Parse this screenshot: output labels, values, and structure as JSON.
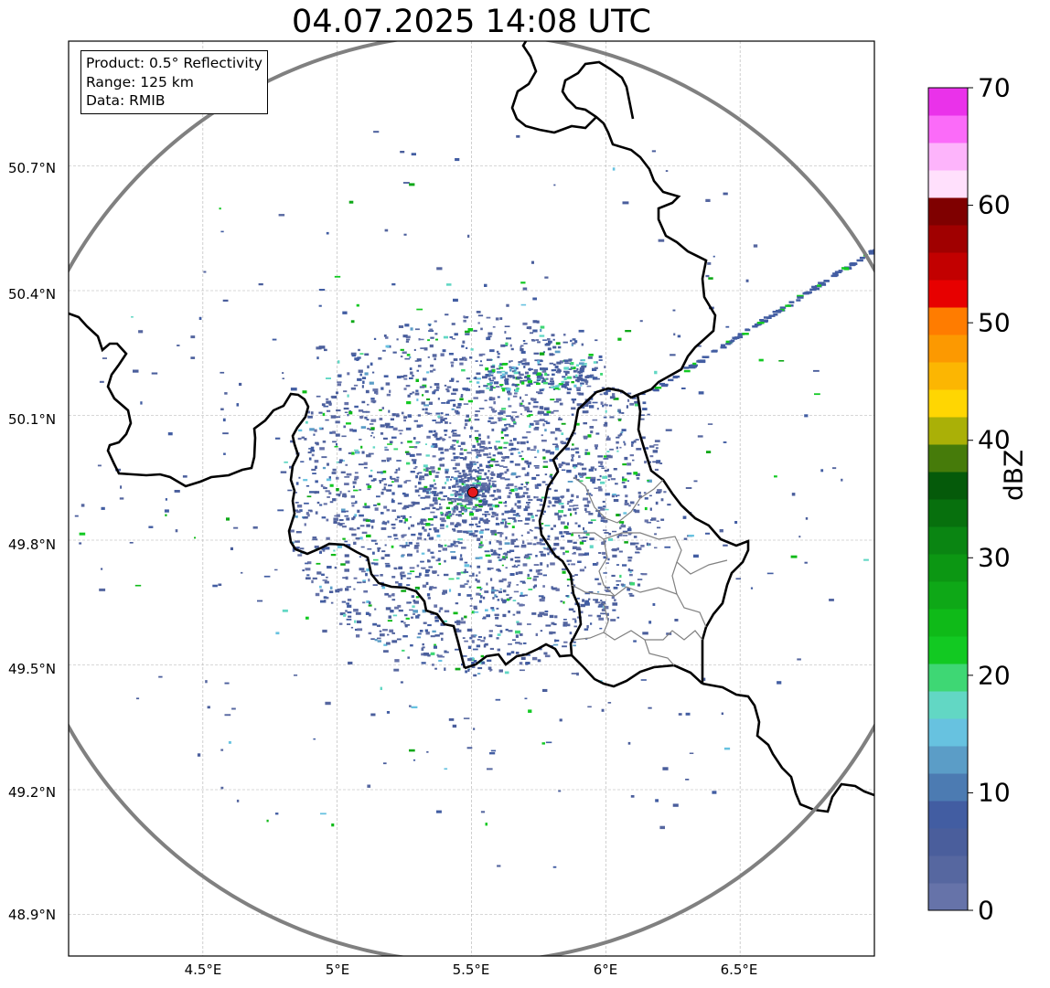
{
  "map": {
    "title": "04.07.2025 14:08 UTC",
    "info": {
      "product": "Product: 0.5° Reflectivity",
      "range": "Range: 125 km",
      "data": "Data: RMIB"
    },
    "lat_ticks": [
      "50.7°N",
      "50.4°N",
      "50.1°N",
      "49.8°N",
      "49.5°N",
      "49.2°N",
      "48.9°N"
    ],
    "lon_ticks": [
      "4.5°E",
      "5°E",
      "5.5°E",
      "6°E",
      "6.5°E"
    ],
    "extent": {
      "lon_min": 4.0,
      "lon_max": 7.0,
      "lat_min": 48.8,
      "lat_max": 51.0
    },
    "radar_site": {
      "lon": 5.505,
      "lat": 49.915,
      "marker_color": "#e41a1c"
    },
    "range_ring_color": "#808080",
    "border_color": "#000000",
    "admin_border_color": "#808080",
    "grid": true
  },
  "colorbar": {
    "label": "dBZ",
    "tick_labels": [
      "0",
      "10",
      "20",
      "30",
      "40",
      "50",
      "60",
      "70"
    ],
    "min": 0,
    "max": 70,
    "step": 2.5,
    "colors": [
      "#6673a9",
      "#5667a0",
      "#4a5e9c",
      "#425da2",
      "#4c7bb2",
      "#5b9dc7",
      "#67c2e0",
      "#62d7c4",
      "#3ed774",
      "#12c922",
      "#0fba18",
      "#0ea817",
      "#0c9713",
      "#0a8512",
      "#07700d",
      "#055a0a",
      "#467b0a",
      "#aab007",
      "#ffd602",
      "#fcb602",
      "#fc9901",
      "#ff7c00",
      "#e70000",
      "#c20000",
      "#a00000",
      "#7f0000",
      "#ffe0fc",
      "#fdb4fb",
      "#fb6bf9",
      "#ea32ea"
    ]
  }
}
